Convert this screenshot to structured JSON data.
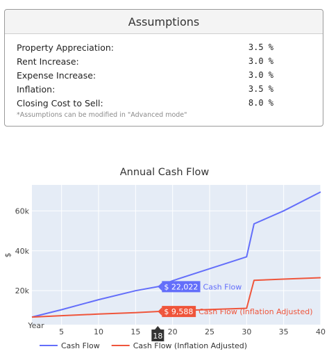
{
  "assumptions": {
    "title": "Assumptions",
    "rows": [
      {
        "label": "Property Appreciation:",
        "value": "3.5 %"
      },
      {
        "label": "Rent Increase:",
        "value": "3.0 %"
      },
      {
        "label": "Expense Increase:",
        "value": "3.0 %"
      },
      {
        "label": "Inflation:",
        "value": "3.5 %"
      },
      {
        "label": "Closing Cost to Sell:",
        "value": "8.0 %"
      }
    ],
    "note": "*Assumptions can be modified in \"Advanced mode\""
  },
  "chart_data": {
    "type": "line",
    "title": "Annual Cash Flow",
    "xlabel": "Year",
    "ylabel": "$",
    "xlim": [
      1,
      40
    ],
    "ylim": [
      3000,
      73000
    ],
    "x_ticks": [
      5,
      10,
      15,
      20,
      25,
      30,
      35,
      40
    ],
    "y_ticks": [
      20000,
      40000,
      60000
    ],
    "y_tick_labels": [
      "20k",
      "40k",
      "60k"
    ],
    "grid": true,
    "legend": "bottom",
    "series": [
      {
        "name": "Cash Flow",
        "color": "#636efa",
        "x": [
          1,
          5,
          10,
          15,
          18,
          20,
          25,
          30,
          31,
          35,
          40
        ],
        "y": [
          6800,
          10500,
          15500,
          20000,
          22022,
          25000,
          31000,
          37000,
          53500,
          60000,
          69500
        ]
      },
      {
        "name": "Cash Flow (Inflation Adjusted)",
        "color": "#ef553b",
        "x": [
          1,
          5,
          10,
          15,
          18,
          20,
          25,
          30,
          31,
          35,
          40
        ],
        "y": [
          6800,
          7500,
          8300,
          9000,
          9588,
          9900,
          10600,
          11200,
          25200,
          25800,
          26500
        ]
      }
    ],
    "hover": {
      "x": 18,
      "x_label": "18",
      "labels": [
        {
          "series": 0,
          "value_text": "$ 22,022",
          "name": "Cash Flow",
          "color": "#636efa"
        },
        {
          "series": 1,
          "value_text": "$ 9,588",
          "name": "Cash Flow (Inflation Adjusted)",
          "color": "#ef553b"
        }
      ]
    }
  }
}
